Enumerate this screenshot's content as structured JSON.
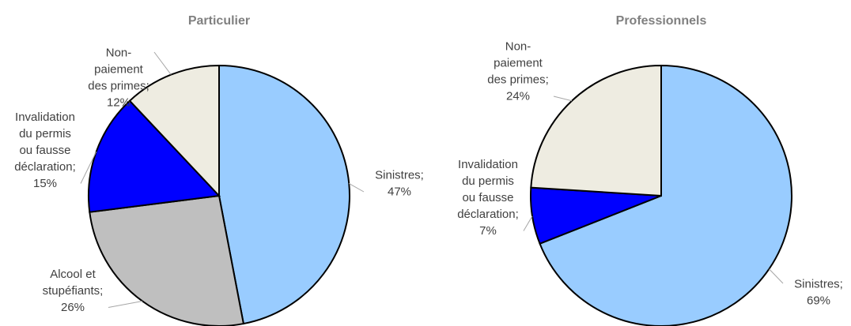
{
  "chart_data": [
    {
      "type": "pie",
      "title": "Particulier",
      "categories": [
        "Sinistres;",
        "Alcool et stupéfiants;",
        "Invalidation du permis ou fausse déclaration;",
        "Non-paiement des primes;"
      ],
      "values": [
        47,
        26,
        15,
        12
      ],
      "value_labels": [
        "47%",
        "26%",
        "15%",
        "12%"
      ],
      "colors": [
        "#99ccff",
        "#bfbfbf",
        "#0000ff",
        "#eeece1"
      ]
    },
    {
      "type": "pie",
      "title": "Professionnels",
      "categories": [
        "Sinistres;",
        "Invalidation du permis ou fausse déclaration;",
        "Non-paiement des primes;"
      ],
      "values": [
        69,
        7,
        24
      ],
      "value_labels": [
        "69%",
        "7%",
        "24%"
      ],
      "colors": [
        "#99ccff",
        "#0000ff",
        "#eeece1"
      ]
    }
  ]
}
